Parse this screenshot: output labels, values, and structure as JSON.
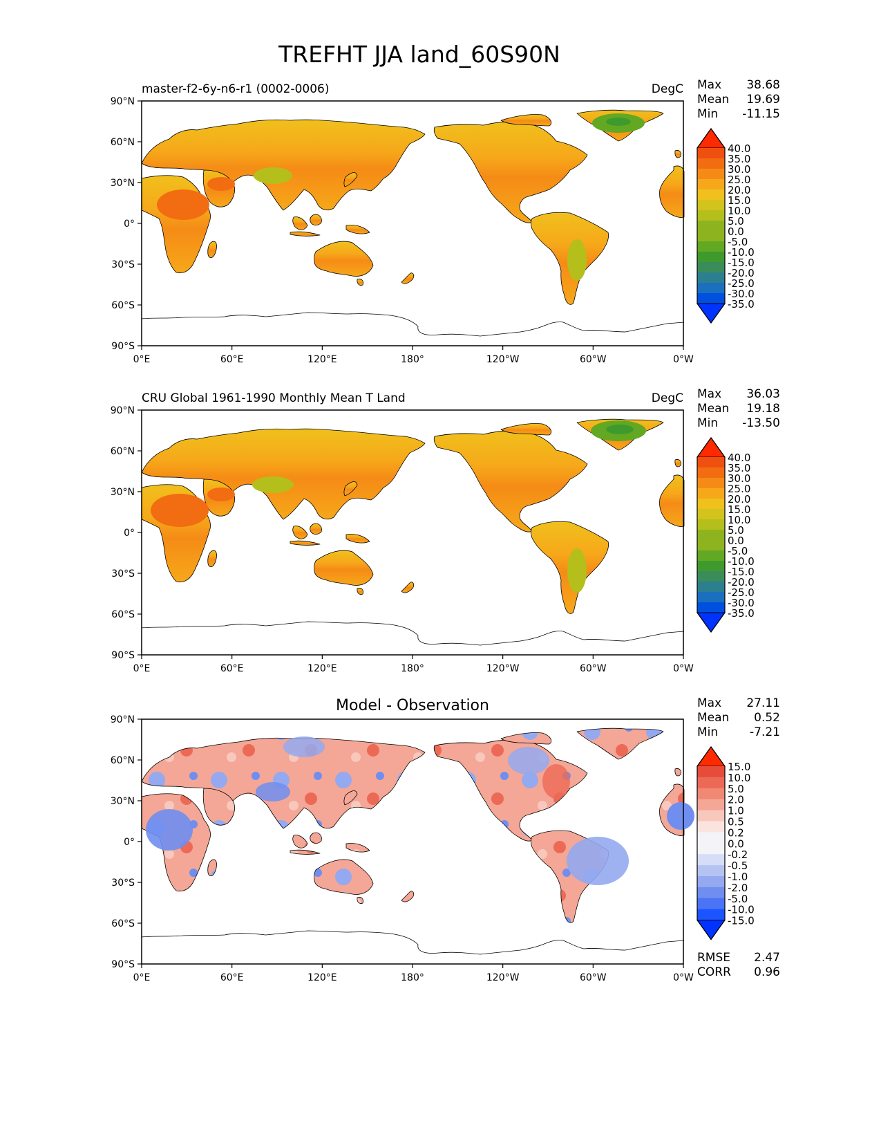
{
  "title": "TREFHT JJA land_60S90N",
  "lon_ticks": [
    "0°E",
    "60°E",
    "120°E",
    "180°",
    "120°W",
    "60°W",
    "0°W"
  ],
  "lat_ticks": [
    "90°N",
    "60°N",
    "30°N",
    "0°",
    "30°S",
    "60°S",
    "90°S"
  ],
  "colors": {
    "abs_levels": [
      "#0033ff",
      "#0050e0",
      "#1a6fbf",
      "#2b7f8f",
      "#3a8c5a",
      "#3f9a2d",
      "#62a823",
      "#8db41f",
      "#b4bf1c",
      "#d3c31d",
      "#f0c01c",
      "#f6a81a",
      "#f58b16",
      "#f26d12",
      "#ef4f0f",
      "#ff2a00"
    ],
    "diff_levels": [
      "#0033ff",
      "#1a55ff",
      "#4a73f5",
      "#6f8ef0",
      "#94a9f0",
      "#b5c3f2",
      "#d5ddf7",
      "#f3f3f8",
      "#fbe4df",
      "#f9c8bc",
      "#f4a796",
      "#f08873",
      "#ec6a55",
      "#e74c3a",
      "#ff2a00"
    ],
    "land_outline": "#000000"
  },
  "panels": [
    {
      "id": "test",
      "left_title": "master-f2-6y-n6-r1 (0002-0006)",
      "center_title": "",
      "units": "DegC",
      "stats": [
        {
          "label": "Max",
          "value": "38.68"
        },
        {
          "label": "Mean",
          "value": "19.69"
        },
        {
          "label": "Min",
          "value": "-11.15"
        }
      ],
      "colorbar_labels": [
        "40.0",
        "35.0",
        "30.0",
        "25.0",
        "20.0",
        "15.0",
        "10.0",
        "5.0",
        "0.0",
        "-5.0",
        "-10.0",
        "-15.0",
        "-20.0",
        "-25.0",
        "-30.0",
        "-35.0"
      ],
      "colormap": "abs",
      "extra_stats": []
    },
    {
      "id": "reference",
      "left_title": "CRU Global 1961-1990 Monthly Mean T Land",
      "center_title": "",
      "units": "DegC",
      "stats": [
        {
          "label": "Max",
          "value": "36.03"
        },
        {
          "label": "Mean",
          "value": "19.18"
        },
        {
          "label": "Min",
          "value": "-13.50"
        }
      ],
      "colorbar_labels": [
        "40.0",
        "35.0",
        "30.0",
        "25.0",
        "20.0",
        "15.0",
        "10.0",
        "5.0",
        "0.0",
        "-5.0",
        "-10.0",
        "-15.0",
        "-20.0",
        "-25.0",
        "-30.0",
        "-35.0"
      ],
      "colormap": "abs",
      "extra_stats": []
    },
    {
      "id": "difference",
      "left_title": "",
      "center_title": "Model - Observation",
      "units": "",
      "stats": [
        {
          "label": "Max",
          "value": "27.11"
        },
        {
          "label": "Mean",
          "value": "0.52"
        },
        {
          "label": "Min",
          "value": "-7.21"
        }
      ],
      "colorbar_labels": [
        "15.0",
        "10.0",
        "5.0",
        "2.0",
        "1.0",
        "0.5",
        "0.2",
        "0.0",
        "-0.2",
        "-0.5",
        "-1.0",
        "-2.0",
        "-5.0",
        "-10.0",
        "-15.0"
      ],
      "colormap": "diff",
      "extra_stats": [
        {
          "label": "RMSE",
          "value": "2.47"
        },
        {
          "label": "CORR",
          "value": "0.96"
        }
      ]
    }
  ]
}
